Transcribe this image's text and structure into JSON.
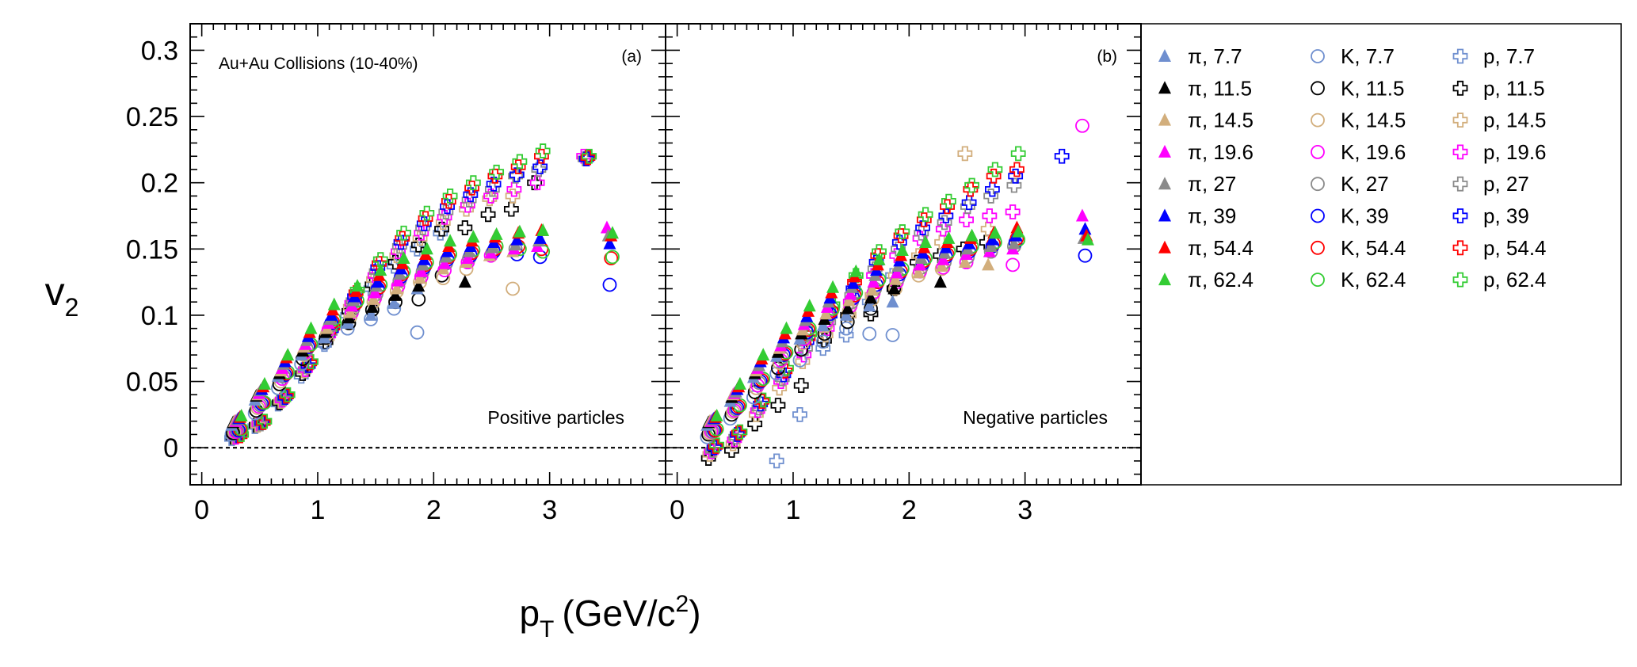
{
  "figure": {
    "ylabel_main": "v",
    "ylabel_sub": "2",
    "xlabel_main": "p",
    "xlabel_sub": "T",
    "xlabel_unit": "(GeV/c",
    "xlabel_sup": "2",
    "xlabel_close": ")"
  },
  "panels": [
    {
      "tag": "(a)",
      "title": "Au+Au Collisions (10-40%)",
      "note": "Positive particles"
    },
    {
      "tag": "(b)",
      "title": "",
      "note": "Negative particles"
    }
  ],
  "energies": [
    "7.7",
    "11.5",
    "14.5",
    "19.6",
    "27",
    "39",
    "54.4",
    "62.4"
  ],
  "energy_colors": [
    "#6f8fcf",
    "#000000",
    "#d2ae7c",
    "#ff00ff",
    "#8a8a8a",
    "#0000ff",
    "#ff0000",
    "#33cc33"
  ],
  "species": [
    {
      "label": "π",
      "marker": "triangle-filled"
    },
    {
      "label": "K",
      "marker": "circle-open"
    },
    {
      "label": "p",
      "marker": "cross-open"
    }
  ],
  "legend": [
    [
      "π, 7.7",
      "π, 11.5",
      "π, 14.5",
      "π, 19.6",
      "π, 27",
      "π, 39",
      "π, 54.4",
      "π, 62.4"
    ],
    [
      "K, 7.7",
      "K, 11.5",
      "K, 14.5",
      "K, 19.6",
      "K, 27",
      "K, 39",
      "K, 54.4",
      "K, 62.4"
    ],
    [
      "p, 7.7",
      "p, 11.5",
      "p, 14.5",
      "p, 19.6",
      "p, 27",
      "p, 39",
      "p, 54.4",
      "p, 62.4"
    ]
  ],
  "chart_data": {
    "type": "scatter",
    "xlabel": "pT (GeV/c2)",
    "ylabel": "v2",
    "xlim": [
      -0.1,
      4.0
    ],
    "ylim": [
      -0.028,
      0.32
    ],
    "xticks": [
      "0",
      "1",
      "2",
      "3"
    ],
    "yticks": [
      "0",
      "0.05",
      "0.1",
      "0.15",
      "0.2",
      "0.25",
      "0.3"
    ],
    "zero_line": "dashed",
    "x_pi": [
      0.3,
      0.5,
      0.7,
      0.9,
      1.1,
      1.3,
      1.5,
      1.7,
      1.9,
      2.1,
      2.3,
      2.5,
      2.7,
      2.9,
      3.5
    ],
    "x_k": [
      0.3,
      0.5,
      0.7,
      0.9,
      1.1,
      1.3,
      1.5,
      1.7,
      1.9,
      2.1,
      2.3,
      2.5,
      2.7,
      2.9,
      3.5
    ],
    "x_p": [
      0.3,
      0.5,
      0.7,
      0.9,
      1.1,
      1.3,
      1.5,
      1.7,
      1.9,
      2.1,
      2.3,
      2.5,
      2.7,
      2.9,
      3.3
    ],
    "panels": [
      {
        "name": "Positive particles",
        "pi": [
          [
            0.017,
            0.036,
            0.054,
            0.07,
            0.083,
            0.094,
            0.1,
            0.109,
            0.12,
            null,
            null,
            null,
            null,
            null,
            null
          ],
          [
            0.019,
            0.039,
            0.056,
            0.073,
            0.087,
            0.098,
            0.106,
            0.115,
            0.122,
            null,
            0.125,
            null,
            null,
            null,
            null
          ],
          [
            0.02,
            0.04,
            0.058,
            0.076,
            0.09,
            0.102,
            0.112,
            0.12,
            0.128,
            0.135,
            0.14,
            0.145,
            0.148,
            null,
            null
          ],
          [
            0.02,
            0.041,
            0.06,
            0.078,
            0.094,
            0.107,
            0.117,
            0.126,
            0.133,
            0.139,
            0.143,
            0.147,
            0.15,
            0.152,
            0.166
          ],
          [
            0.021,
            0.043,
            0.063,
            0.081,
            0.097,
            0.111,
            0.122,
            0.131,
            0.138,
            0.144,
            0.148,
            0.151,
            0.153,
            0.156,
            0.16
          ],
          [
            0.022,
            0.044,
            0.065,
            0.084,
            0.1,
            0.114,
            0.125,
            0.135,
            0.142,
            0.148,
            0.152,
            0.155,
            0.157,
            0.158,
            0.154
          ],
          [
            0.023,
            0.046,
            0.068,
            0.087,
            0.104,
            0.118,
            0.13,
            0.139,
            0.146,
            0.152,
            0.156,
            0.159,
            0.162,
            0.164,
            0.16
          ],
          [
            0.024,
            0.048,
            0.07,
            0.09,
            0.108,
            0.122,
            0.134,
            0.143,
            0.15,
            0.156,
            0.159,
            0.161,
            0.163,
            0.164,
            0.162
          ]
        ],
        "k": [
          [
            0.01,
            0.026,
            0.045,
            0.063,
            0.079,
            0.09,
            0.097,
            0.105,
            0.087,
            null,
            null,
            null,
            null,
            null,
            null
          ],
          [
            0.011,
            0.028,
            0.048,
            0.067,
            0.083,
            0.094,
            0.104,
            0.11,
            0.112,
            0.13,
            null,
            null,
            null,
            null,
            null
          ],
          [
            0.012,
            0.03,
            0.05,
            0.07,
            0.086,
            0.099,
            0.11,
            0.118,
            0.125,
            0.128,
            0.135,
            null,
            0.12,
            null,
            null
          ],
          [
            0.012,
            0.031,
            0.052,
            0.072,
            0.089,
            0.102,
            0.113,
            0.122,
            0.129,
            0.134,
            0.14,
            0.145,
            null,
            null,
            null
          ],
          [
            0.013,
            0.032,
            0.054,
            0.074,
            0.092,
            0.105,
            0.116,
            0.126,
            0.133,
            0.139,
            0.143,
            0.147,
            0.15,
            null,
            null
          ],
          [
            0.013,
            0.033,
            0.055,
            0.076,
            0.094,
            0.108,
            0.12,
            0.129,
            0.136,
            0.142,
            0.145,
            0.148,
            0.146,
            0.144,
            0.123
          ],
          [
            0.014,
            0.034,
            0.056,
            0.077,
            0.095,
            0.109,
            0.121,
            0.131,
            0.138,
            0.144,
            0.147,
            0.15,
            0.152,
            0.15,
            0.143
          ],
          [
            0.014,
            0.034,
            0.057,
            0.078,
            0.097,
            0.111,
            0.123,
            0.133,
            0.14,
            0.146,
            0.149,
            0.152,
            0.15,
            0.148,
            0.144
          ]
        ],
        "p": [
          [
            0.007,
            0.016,
            0.033,
            0.054,
            0.078,
            0.1,
            0.12,
            0.137,
            0.15,
            0.162,
            null,
            null,
            null,
            null,
            null
          ],
          [
            0.008,
            0.017,
            0.034,
            0.056,
            0.08,
            0.103,
            0.123,
            0.14,
            0.153,
            0.165,
            0.166,
            0.176,
            0.18,
            0.2,
            null
          ],
          [
            0.008,
            0.017,
            0.035,
            0.058,
            0.083,
            0.106,
            0.127,
            0.145,
            0.158,
            0.17,
            0.18,
            0.188,
            0.19,
            null,
            null
          ],
          [
            0.008,
            0.018,
            0.036,
            0.059,
            0.085,
            0.109,
            0.13,
            0.148,
            0.162,
            0.174,
            0.183,
            0.19,
            0.195,
            0.2,
            0.22
          ],
          [
            0.009,
            0.018,
            0.037,
            0.061,
            0.087,
            0.111,
            0.133,
            0.152,
            0.166,
            0.178,
            0.187,
            0.195,
            0.205,
            0.21,
            0.218
          ],
          [
            0.009,
            0.019,
            0.038,
            0.062,
            0.089,
            0.114,
            0.136,
            0.155,
            0.169,
            0.182,
            0.191,
            0.199,
            0.206,
            0.212,
            0.218
          ],
          [
            0.009,
            0.019,
            0.039,
            0.064,
            0.091,
            0.117,
            0.139,
            0.158,
            0.173,
            0.186,
            0.196,
            0.205,
            0.212,
            0.22,
            0.219
          ],
          [
            0.01,
            0.02,
            0.04,
            0.065,
            0.093,
            0.119,
            0.142,
            0.162,
            0.177,
            0.19,
            0.2,
            0.208,
            0.216,
            0.224,
            0.22
          ]
        ]
      },
      {
        "name": "Negative particles",
        "pi": [
          [
            0.017,
            0.035,
            0.053,
            0.069,
            0.082,
            0.092,
            0.1,
            0.107,
            0.11,
            null,
            null,
            null,
            null,
            null,
            null
          ],
          [
            0.019,
            0.038,
            0.056,
            0.072,
            0.086,
            0.097,
            0.105,
            0.113,
            0.12,
            null,
            0.125,
            null,
            null,
            null,
            null
          ],
          [
            0.02,
            0.04,
            0.058,
            0.075,
            0.089,
            0.101,
            0.111,
            0.119,
            0.127,
            0.132,
            0.137,
            0.14,
            0.138,
            null,
            null
          ],
          [
            0.02,
            0.041,
            0.06,
            0.077,
            0.093,
            0.106,
            0.116,
            0.125,
            0.132,
            0.138,
            0.142,
            0.146,
            0.148,
            0.15,
            0.175
          ],
          [
            0.021,
            0.042,
            0.062,
            0.08,
            0.096,
            0.11,
            0.121,
            0.13,
            0.137,
            0.143,
            0.147,
            0.15,
            0.152,
            0.154,
            0.158
          ],
          [
            0.022,
            0.044,
            0.065,
            0.083,
            0.099,
            0.113,
            0.124,
            0.134,
            0.141,
            0.147,
            0.151,
            0.154,
            0.157,
            0.16,
            0.165
          ],
          [
            0.023,
            0.046,
            0.067,
            0.086,
            0.103,
            0.117,
            0.129,
            0.138,
            0.145,
            0.151,
            0.155,
            0.158,
            0.162,
            0.166,
            0.16
          ],
          [
            0.024,
            0.048,
            0.07,
            0.09,
            0.107,
            0.121,
            0.133,
            0.142,
            0.149,
            0.155,
            0.158,
            0.16,
            0.162,
            0.163,
            0.157
          ]
        ],
        "k": [
          [
            0.008,
            0.022,
            0.038,
            0.056,
            0.066,
            0.08,
            0.09,
            0.086,
            0.085,
            null,
            null,
            null,
            null,
            null,
            null
          ],
          [
            0.01,
            0.025,
            0.042,
            0.06,
            0.074,
            0.086,
            0.095,
            0.105,
            0.12,
            null,
            null,
            null,
            null,
            null,
            null
          ],
          [
            0.011,
            0.027,
            0.045,
            0.064,
            0.079,
            0.092,
            0.103,
            0.112,
            0.12,
            0.13,
            0.135,
            null,
            null,
            null,
            null
          ],
          [
            0.012,
            0.028,
            0.047,
            0.066,
            0.082,
            0.096,
            0.107,
            0.117,
            0.125,
            0.133,
            0.136,
            0.14,
            null,
            0.138,
            0.243
          ],
          [
            0.012,
            0.029,
            0.049,
            0.068,
            0.085,
            0.099,
            0.11,
            0.12,
            0.128,
            0.136,
            0.14,
            0.144,
            0.148,
            0.152,
            null
          ],
          [
            0.013,
            0.03,
            0.05,
            0.07,
            0.087,
            0.101,
            0.113,
            0.123,
            0.131,
            0.139,
            0.144,
            0.148,
            0.152,
            0.155,
            0.145
          ],
          [
            0.013,
            0.031,
            0.051,
            0.071,
            0.089,
            0.103,
            0.115,
            0.125,
            0.133,
            0.141,
            0.146,
            0.15,
            0.154,
            0.158,
            null
          ],
          [
            0.014,
            0.032,
            0.052,
            0.072,
            0.09,
            0.105,
            0.117,
            0.127,
            0.135,
            0.143,
            0.148,
            0.152,
            0.155,
            0.157,
            null
          ]
        ],
        "p": [
          [
            null,
            null,
            null,
            -0.01,
            0.025,
            0.075,
            0.085,
            0.11,
            0.13,
            null,
            null,
            null,
            null,
            null,
            null
          ],
          [
            -0.008,
            -0.002,
            0.018,
            0.032,
            0.047,
            0.081,
            0.1,
            0.101,
            0.12,
            0.14,
            0.145,
            0.15,
            0.155,
            null,
            null
          ],
          [
            -0.005,
            0.003,
            0.025,
            0.045,
            0.065,
            0.085,
            0.1,
            0.115,
            0.13,
            0.145,
            0.155,
            0.222,
            0.165,
            null,
            null
          ],
          [
            -0.003,
            0.006,
            0.028,
            0.05,
            0.07,
            0.09,
            0.11,
            0.13,
            0.145,
            0.158,
            0.165,
            0.172,
            0.175,
            0.178,
            null
          ],
          [
            -0.002,
            0.008,
            0.03,
            0.052,
            0.075,
            0.095,
            0.115,
            0.135,
            0.15,
            0.162,
            0.17,
            0.182,
            0.19,
            0.198,
            null
          ],
          [
            0.0,
            0.01,
            0.033,
            0.055,
            0.08,
            0.1,
            0.12,
            0.14,
            0.155,
            0.166,
            0.175,
            0.185,
            0.195,
            0.205,
            0.22
          ],
          [
            0.001,
            0.011,
            0.035,
            0.058,
            0.083,
            0.104,
            0.125,
            0.145,
            0.16,
            0.172,
            0.182,
            0.195,
            0.205,
            0.21,
            null
          ],
          [
            0.002,
            0.012,
            0.036,
            0.06,
            0.086,
            0.108,
            0.13,
            0.148,
            0.163,
            0.176,
            0.186,
            0.198,
            0.21,
            0.222,
            null
          ]
        ]
      }
    ]
  }
}
